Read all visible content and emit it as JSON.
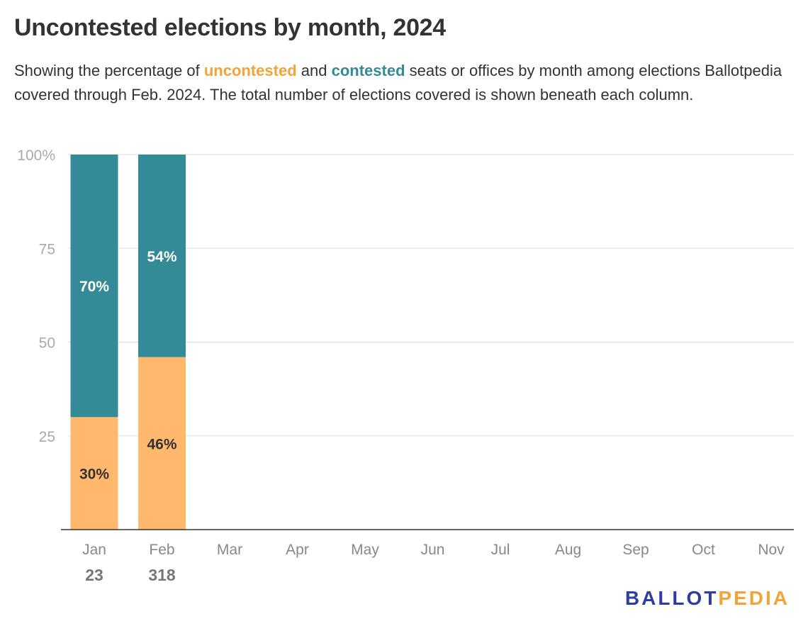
{
  "title": "Uncontested elections by month, 2024",
  "subtitle": {
    "part1": "Showing the percentage of ",
    "uncontested_word": "uncontested",
    "part2": " and ",
    "contested_word": "contested",
    "part3": " seats or offices by month among elections Ballotpedia covered through Feb. 2024. The total number of elections covered is shown beneath each column."
  },
  "colors": {
    "uncontested": "#FFB86C",
    "contested": "#348A96",
    "uncontested_text": "#F2A43A",
    "contested_text": "#348A96",
    "grid": "#DDDDDD",
    "axis_text": "#AAAAAA",
    "month_text": "#888888",
    "count_text": "#777777",
    "logo_blue": "#2E3E9C",
    "logo_gold": "#F2A43A"
  },
  "chart_data": {
    "type": "bar",
    "stacked": true,
    "categories": [
      "Jan",
      "Feb",
      "Mar",
      "Apr",
      "May",
      "Jun",
      "Jul",
      "Aug",
      "Sep",
      "Oct",
      "Nov"
    ],
    "counts": [
      "23",
      "318",
      "",
      "",
      "",
      "",
      "",
      "",
      "",
      "",
      ""
    ],
    "series": [
      {
        "name": "uncontested",
        "values": [
          30,
          46,
          null,
          null,
          null,
          null,
          null,
          null,
          null,
          null,
          null
        ],
        "labels": [
          "30%",
          "46%"
        ]
      },
      {
        "name": "contested",
        "values": [
          70,
          54,
          null,
          null,
          null,
          null,
          null,
          null,
          null,
          null,
          null
        ],
        "labels": [
          "70%",
          "54%"
        ]
      }
    ],
    "ylim": [
      0,
      100
    ],
    "yticks": [
      25,
      50,
      75,
      100
    ],
    "ytick_labels": [
      "25",
      "50",
      "75",
      "100%"
    ],
    "grid": true
  },
  "logo": {
    "part1": "BALLOT",
    "part2": "PEDIA"
  }
}
